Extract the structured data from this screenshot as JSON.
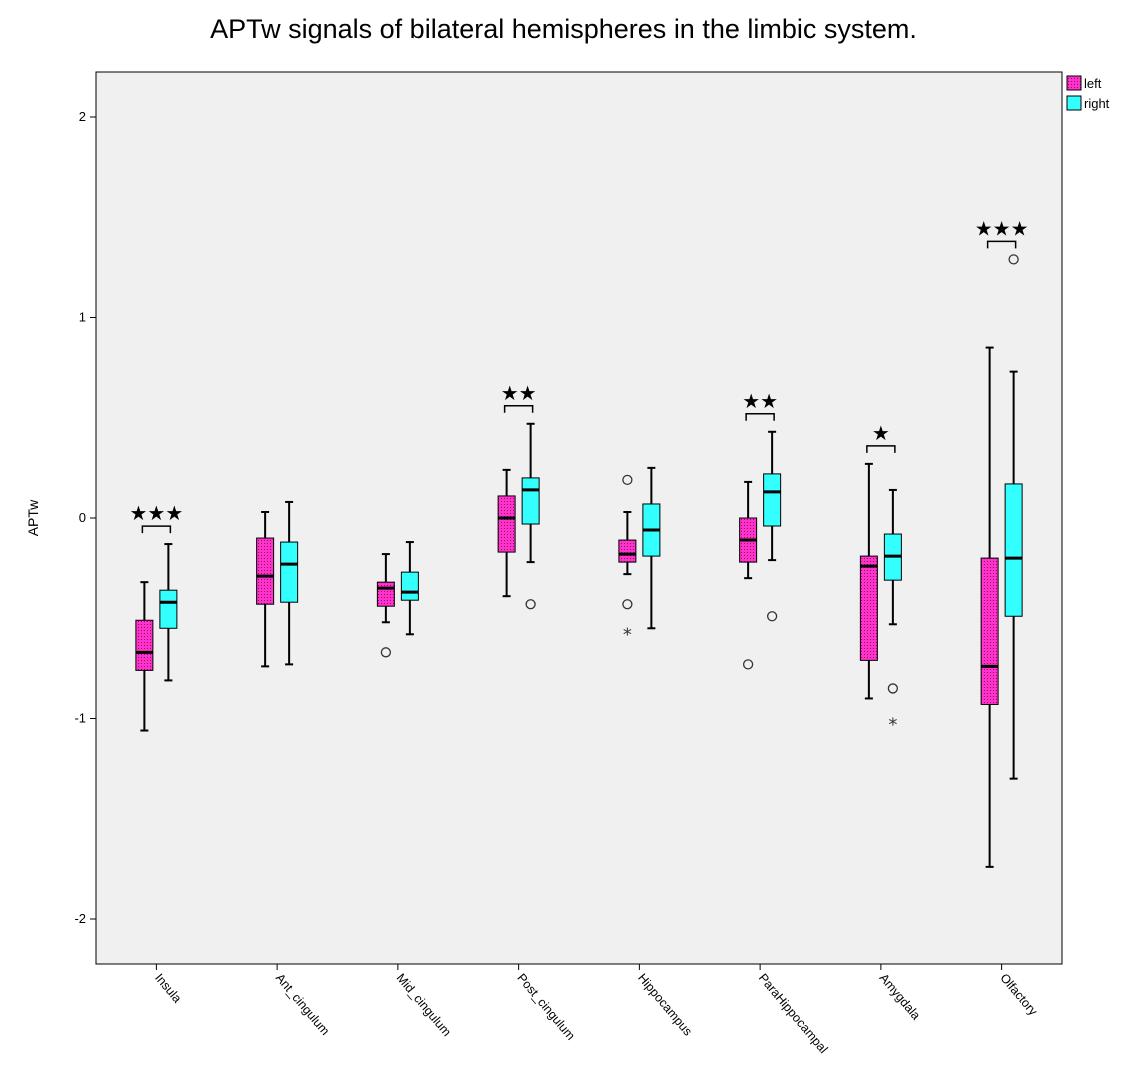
{
  "chart_data": {
    "type": "boxplot",
    "title": "APTw signals of bilateral hemispheres in the limbic system.",
    "ylabel": "APTw",
    "xlabel": "",
    "ylim": [
      -2.25,
      2.23
    ],
    "yticks": [
      2,
      1,
      0,
      -1,
      -2
    ],
    "ytick_labels": [
      "2",
      "1",
      "0",
      "-1",
      "-2"
    ],
    "grid": false,
    "legend_position": "top-right",
    "categories": [
      "Insula",
      "Ant_cingulum",
      "Mid_cingulum",
      "Post_cingulum",
      "Hippocampus",
      "ParaHippocampal",
      "Amygdala",
      "Olfactory"
    ],
    "series": [
      {
        "name": "left",
        "color": "#ff33cc",
        "boxes": [
          {
            "min": -1.06,
            "q1": -0.76,
            "median": -0.67,
            "q3": -0.51,
            "max": -0.32,
            "outliers": [],
            "extremes": []
          },
          {
            "min": -0.74,
            "q1": -0.43,
            "median": -0.29,
            "q3": -0.1,
            "max": 0.03,
            "outliers": [],
            "extremes": []
          },
          {
            "min": -0.52,
            "q1": -0.44,
            "median": -0.35,
            "q3": -0.32,
            "max": -0.18,
            "outliers": [
              -0.67
            ],
            "extremes": []
          },
          {
            "min": -0.39,
            "q1": -0.17,
            "median": 0.0,
            "q3": 0.11,
            "max": 0.24,
            "outliers": [],
            "extremes": []
          },
          {
            "min": -0.28,
            "q1": -0.22,
            "median": -0.18,
            "q3": -0.11,
            "max": 0.03,
            "outliers": [
              0.19,
              -0.43
            ],
            "extremes": [
              -0.57
            ]
          },
          {
            "min": -0.3,
            "q1": -0.22,
            "median": -0.11,
            "q3": 0.0,
            "max": 0.18,
            "outliers": [
              -0.73
            ],
            "extremes": []
          },
          {
            "min": -0.9,
            "q1": -0.71,
            "median": -0.24,
            "q3": -0.19,
            "max": 0.27,
            "outliers": [],
            "extremes": []
          },
          {
            "min": -1.74,
            "q1": -0.93,
            "median": -0.74,
            "q3": -0.2,
            "max": 0.85,
            "outliers": [],
            "extremes": []
          }
        ]
      },
      {
        "name": "right",
        "color": "#33ffff",
        "boxes": [
          {
            "min": -0.81,
            "q1": -0.55,
            "median": -0.42,
            "q3": -0.36,
            "max": -0.13,
            "outliers": [],
            "extremes": []
          },
          {
            "min": -0.73,
            "q1": -0.42,
            "median": -0.23,
            "q3": -0.12,
            "max": 0.08,
            "outliers": [],
            "extremes": []
          },
          {
            "min": -0.58,
            "q1": -0.41,
            "median": -0.37,
            "q3": -0.27,
            "max": -0.12,
            "outliers": [],
            "extremes": []
          },
          {
            "min": -0.22,
            "q1": -0.03,
            "median": 0.14,
            "q3": 0.2,
            "max": 0.47,
            "outliers": [
              -0.43
            ],
            "extremes": []
          },
          {
            "min": -0.55,
            "q1": -0.19,
            "median": -0.06,
            "q3": 0.07,
            "max": 0.25,
            "outliers": [],
            "extremes": []
          },
          {
            "min": -0.21,
            "q1": -0.04,
            "median": 0.13,
            "q3": 0.22,
            "max": 0.43,
            "outliers": [
              -0.49
            ],
            "extremes": []
          },
          {
            "min": -0.53,
            "q1": -0.31,
            "median": -0.19,
            "q3": -0.08,
            "max": 0.14,
            "outliers": [
              -0.85
            ],
            "extremes": [
              -1.02
            ]
          },
          {
            "min": -1.3,
            "q1": -0.49,
            "median": -0.2,
            "q3": 0.17,
            "max": 0.73,
            "outliers": [
              1.29
            ],
            "extremes": []
          }
        ]
      }
    ],
    "annotations": [
      {
        "category": "Insula",
        "label": "★★★"
      },
      {
        "category": "Post_cingulum",
        "label": "★★"
      },
      {
        "category": "ParaHippocampal",
        "label": "★★"
      },
      {
        "category": "Amygdala",
        "label": "★"
      },
      {
        "category": "Olfactory",
        "label": "★★★"
      }
    ]
  }
}
